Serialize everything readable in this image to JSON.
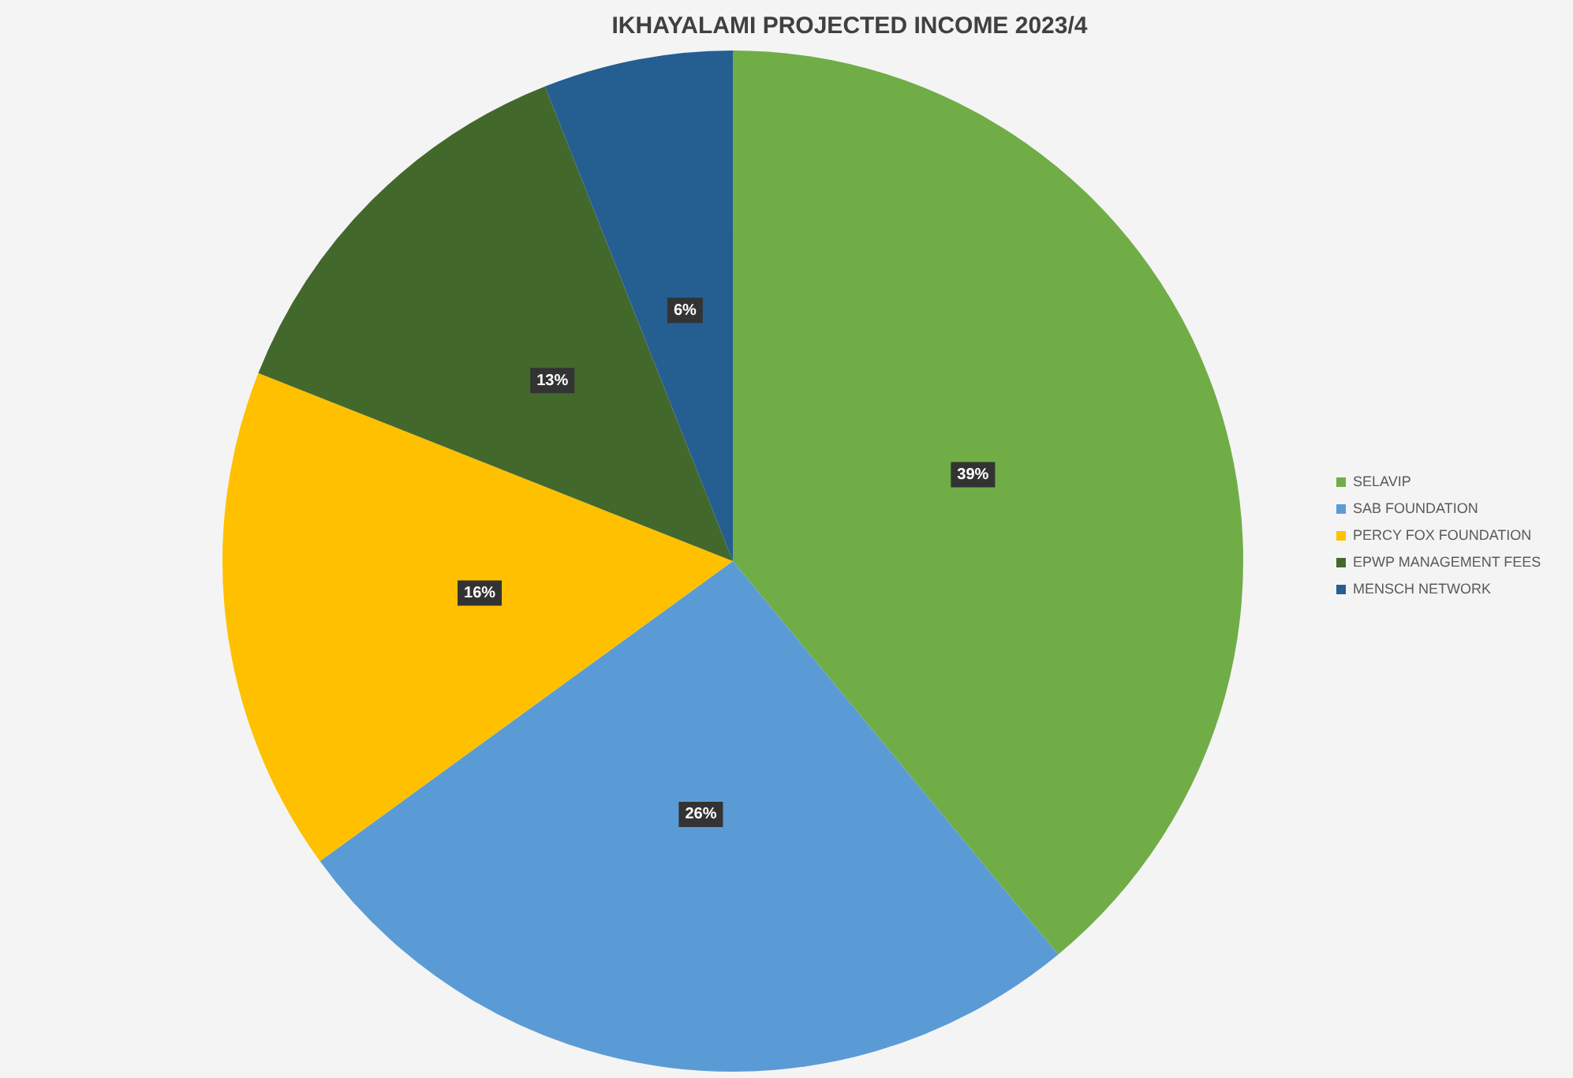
{
  "chart_data": {
    "type": "pie",
    "title": "IKHAYALAMI PROJECTED INCOME 2023/4",
    "categories": [
      "SELAVIP",
      "SAB FOUNDATION",
      "PERCY FOX FOUNDATION",
      "EPWP MANAGEMENT FEES",
      "MENSCH NETWORK"
    ],
    "values": [
      39,
      26,
      16,
      13,
      6
    ],
    "value_labels": [
      "39%",
      "26%",
      "16%",
      "13%",
      "6%"
    ],
    "colors": [
      "#70ad47",
      "#5b9bd5",
      "#ffc000",
      "#43682b",
      "#255e91"
    ],
    "legend": "right"
  }
}
